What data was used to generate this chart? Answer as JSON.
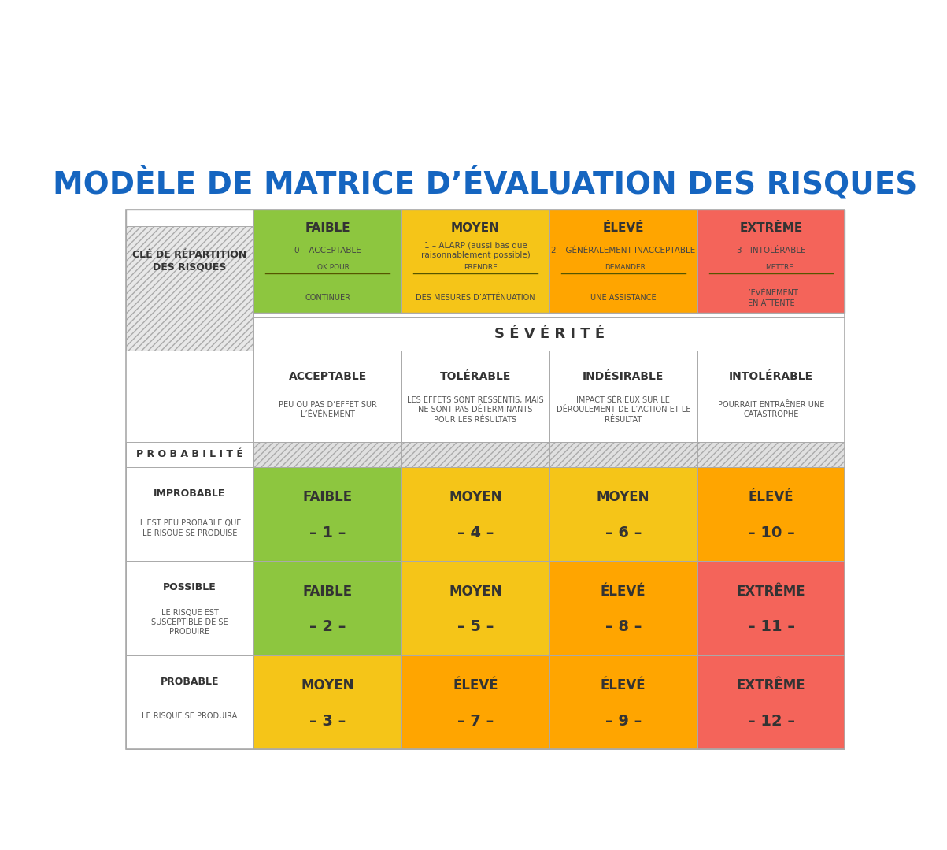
{
  "title": "MODÈLE DE MATRICE D’ÉVALUATION DES RISQUES",
  "title_color": "#1565C0",
  "bg_color": "#ffffff",
  "key_header": {
    "col0_label": "CLÉ DE RÉPARTITION\nDES RISQUES",
    "cols": [
      {
        "label": "FAIBLE",
        "sub1": "0 – ACCEPTABLE",
        "sub2_right": "OK POUR",
        "sub2_main": "CONTINUER",
        "bg": "#8DC63F"
      },
      {
        "label": "MOYEN",
        "sub1": "1 – ALARP (aussi bas que\nraisonnablement possible)",
        "sub2_right": "PRENDRE",
        "sub2_main": "DES MESURES D’ATTÉNUATION",
        "bg": "#F5C518"
      },
      {
        "label": "ÉLEVÉ",
        "sub1": "2 – GÉNÉRALEMENT INACCEPTABLE",
        "sub2_right": "DEMANDER",
        "sub2_main": "UNE ASSISTANCE",
        "bg": "#FFA500"
      },
      {
        "label": "EXTRÊME",
        "sub1": "3 - INTOLÉRABLE",
        "sub2_right": "METTRE",
        "sub2_main": "L’ÉVÉNEMENT\nEN ATTENTE",
        "bg": "#F4645A"
      }
    ]
  },
  "severity_header": {
    "title": "S É V É R I T É",
    "cols": [
      {
        "label": "ACCEPTABLE",
        "desc": "PEU OU PAS D’EFFET SUR\nL’ÉVÉNEMENT"
      },
      {
        "label": "TOLÉRABLE",
        "desc": "LES EFFETS SONT RESSENTIS, MAIS\nNE SONT PAS DÉTERMINANTS\nPOUR LES RÉSULTATS"
      },
      {
        "label": "INDÉSIRABLE",
        "desc": "IMPACT SÉRIEUX SUR LE\nDÉROULEMENT DE L’ACTION ET LE\nRÉSULTAT"
      },
      {
        "label": "INTOLÉRABLE",
        "desc": "POURRAIT ENTRAÊNER UNE\nCATASTROPHE"
      }
    ]
  },
  "prob_label": "P R O B A B I L I T É",
  "rows": [
    {
      "prob_label": "IMPROBABLE",
      "prob_desc": "IL EST PEU PROBABLE QUE\nLE RISQUE SE PRODUISE",
      "cells": [
        {
          "label": "FAIBLE",
          "num": "– 1 –",
          "bg": "#8DC63F"
        },
        {
          "label": "MOYEN",
          "num": "– 4 –",
          "bg": "#F5C518"
        },
        {
          "label": "MOYEN",
          "num": "– 6 –",
          "bg": "#F5C518"
        },
        {
          "label": "ÉLEVÉ",
          "num": "– 10 –",
          "bg": "#FFA500"
        }
      ]
    },
    {
      "prob_label": "POSSIBLE",
      "prob_desc": "LE RISQUE EST\nSUSCEPTIBLE DE SE\nPRODUIRE",
      "cells": [
        {
          "label": "FAIBLE",
          "num": "– 2 –",
          "bg": "#8DC63F"
        },
        {
          "label": "MOYEN",
          "num": "– 5 –",
          "bg": "#F5C518"
        },
        {
          "label": "ÉLEVÉ",
          "num": "– 8 –",
          "bg": "#FFA500"
        },
        {
          "label": "EXTRÊMe",
          "num": "– 11 –",
          "bg": "#F4645A"
        }
      ]
    },
    {
      "prob_label": "PROBABLE",
      "prob_desc": "LE RISQUE SE PRODUIRA",
      "cells": [
        {
          "label": "MOYEN",
          "num": "– 3 –",
          "bg": "#F5C518"
        },
        {
          "label": "ÉLEVÉ",
          "num": "– 7 –",
          "bg": "#FFA500"
        },
        {
          "label": "ÉLEVÉ",
          "num": "– 9 –",
          "bg": "#FFA500"
        },
        {
          "label": "EXTRÊMe",
          "num": "– 12 –",
          "bg": "#F4645A"
        }
      ]
    }
  ]
}
